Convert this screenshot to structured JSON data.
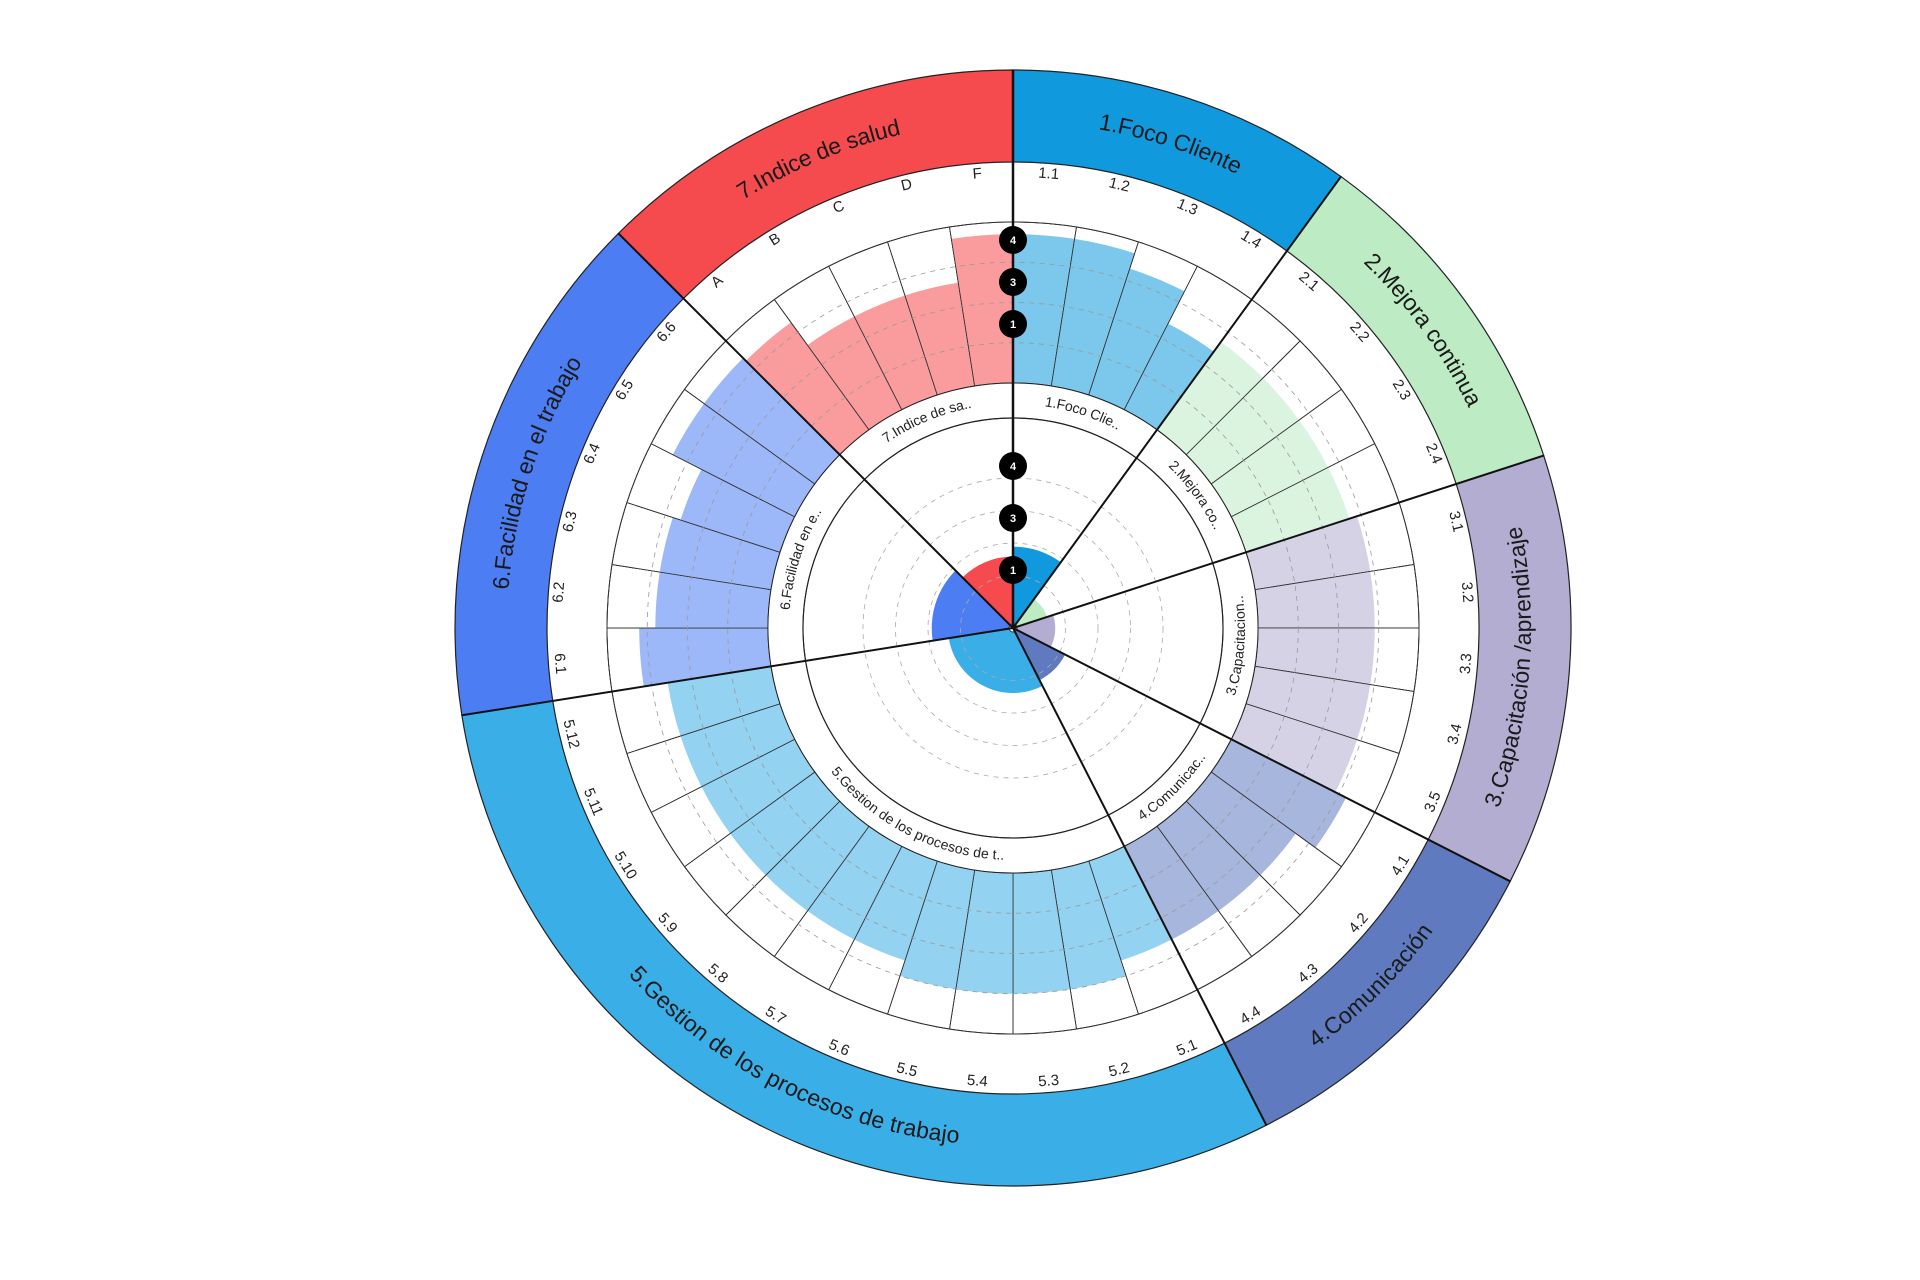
{
  "chart_data": {
    "type": "radial-bar",
    "title": "",
    "scale_max": 4,
    "scale_markers": [
      "4",
      "3",
      "1"
    ],
    "categories": [
      {
        "name": "1.Foco Cliente",
        "short": "1.Foco Clie..",
        "color": "#1199DD",
        "value": 2.5,
        "items": [
          {
            "label": "1.1",
            "value": 3.7
          },
          {
            "label": "1.2",
            "value": 3.7
          },
          {
            "label": "1.3",
            "value": 3.3
          },
          {
            "label": "1.4",
            "value": 2.4
          }
        ]
      },
      {
        "name": "2.Mejora continua",
        "short": "2.Mejora co..",
        "color": "#BDEBC4",
        "value": 1.1,
        "items": [
          {
            "label": "2.1",
            "value": 2.7
          },
          {
            "label": "2.2",
            "value": 2.7
          },
          {
            "label": "2.3",
            "value": 2.7
          },
          {
            "label": "2.4",
            "value": 2.7
          }
        ]
      },
      {
        "name": "3.Capacitación /aprendizaje",
        "short": "3.Capacitacion..",
        "color": "#B2ADD1",
        "value": 1.3,
        "items": [
          {
            "label": "3.1",
            "value": 2.9
          },
          {
            "label": "3.2",
            "value": 2.9
          },
          {
            "label": "3.3",
            "value": 2.9
          },
          {
            "label": "3.4",
            "value": 2.9
          },
          {
            "label": "3.5",
            "value": 2.9
          }
        ]
      },
      {
        "name": "4.Comunicación",
        "short": "4.Comunicac..",
        "color": "#5F7ABF",
        "value": 1.8,
        "items": [
          {
            "label": "4.1",
            "value": 3.2
          },
          {
            "label": "4.2",
            "value": 2.6
          },
          {
            "label": "4.3",
            "value": 2.6
          },
          {
            "label": "4.4",
            "value": 2.6
          }
        ]
      },
      {
        "name": "5.Gestion de los procesos de trabajo",
        "short": "5.Gestion de los procesos de t..",
        "color": "#3AAEE6",
        "value": 2.0,
        "items": [
          {
            "label": "5.1",
            "value": 2.6
          },
          {
            "label": "5.2",
            "value": 3.0
          },
          {
            "label": "5.3",
            "value": 3.0
          },
          {
            "label": "5.4",
            "value": 3.0
          },
          {
            "label": "5.5",
            "value": 3.0
          },
          {
            "label": "5.6",
            "value": 2.6
          },
          {
            "label": "5.7",
            "value": 2.6
          },
          {
            "label": "5.8",
            "value": 2.6
          },
          {
            "label": "5.9",
            "value": 2.6
          },
          {
            "label": "5.10",
            "value": 2.6
          },
          {
            "label": "5.11",
            "value": 2.6
          },
          {
            "label": "5.12",
            "value": 2.6
          }
        ]
      },
      {
        "name": "6.Facilidad en el trabajo",
        "short": "6.Facilidad en e..",
        "color": "#4C7DF2",
        "value": 2.5,
        "items": [
          {
            "label": "6.1",
            "value": 3.2
          },
          {
            "label": "6.2",
            "value": 2.8
          },
          {
            "label": "6.3",
            "value": 2.8
          },
          {
            "label": "6.4",
            "value": 2.6
          },
          {
            "label": "6.5",
            "value": 3.4
          },
          {
            "label": "6.6",
            "value": 3.4
          }
        ]
      },
      {
        "name": "7.Indice de salud",
        "short": "7.Indice de sa..",
        "color": "#F54B4F",
        "value": 2.2,
        "items": [
          {
            "label": "A",
            "value": 3.3
          },
          {
            "label": "B",
            "value": 2.6
          },
          {
            "label": "C",
            "value": 2.6
          },
          {
            "label": "D",
            "value": 2.6
          },
          {
            "label": "F",
            "value": 3.7
          }
        ]
      }
    ]
  }
}
